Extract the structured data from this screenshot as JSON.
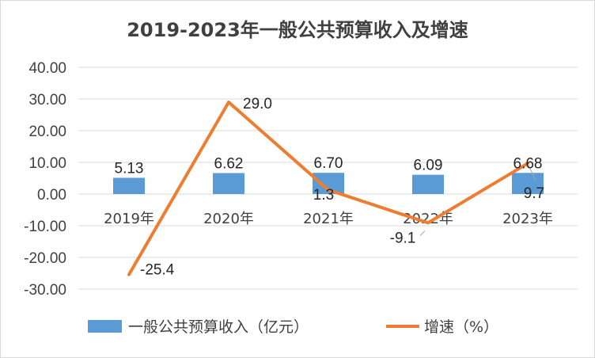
{
  "chart_data": {
    "type": "bar",
    "title": "2019-2023年一般公共预算收入及增速",
    "categories": [
      "2019年",
      "2020年",
      "2021年",
      "2022年",
      "2023年"
    ],
    "ylim": [
      -30,
      40
    ],
    "yticks": [
      "-30.00",
      "-20.00",
      "-10.00",
      "0.00",
      "10.00",
      "20.00",
      "30.00",
      "40.00"
    ],
    "ytick_values": [
      -30,
      -20,
      -10,
      0,
      10,
      20,
      30,
      40
    ],
    "grid": true,
    "legend_position": "bottom",
    "series": [
      {
        "name": "一般公共预算收入（亿元）",
        "type": "bar",
        "color": "#5B9BD5",
        "values": [
          5.13,
          6.62,
          6.7,
          6.09,
          6.68
        ],
        "labels": [
          "5.13",
          "6.62",
          "6.70",
          "6.09",
          "6.68"
        ]
      },
      {
        "name": "增速（%）",
        "type": "line",
        "color": "#ED7D31",
        "values": [
          -25.4,
          29.0,
          1.3,
          -9.1,
          9.7
        ],
        "labels": [
          "-25.4",
          "29.0",
          "1.3",
          "-9.1",
          "9.7"
        ]
      }
    ]
  }
}
